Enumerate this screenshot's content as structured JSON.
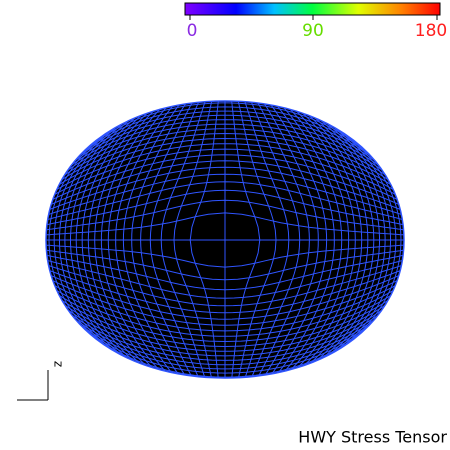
{
  "colorbar": {
    "ticks": [
      "0",
      "90",
      "180"
    ]
  },
  "axis_label": "z",
  "caption": "HWY Stress Tensor"
}
